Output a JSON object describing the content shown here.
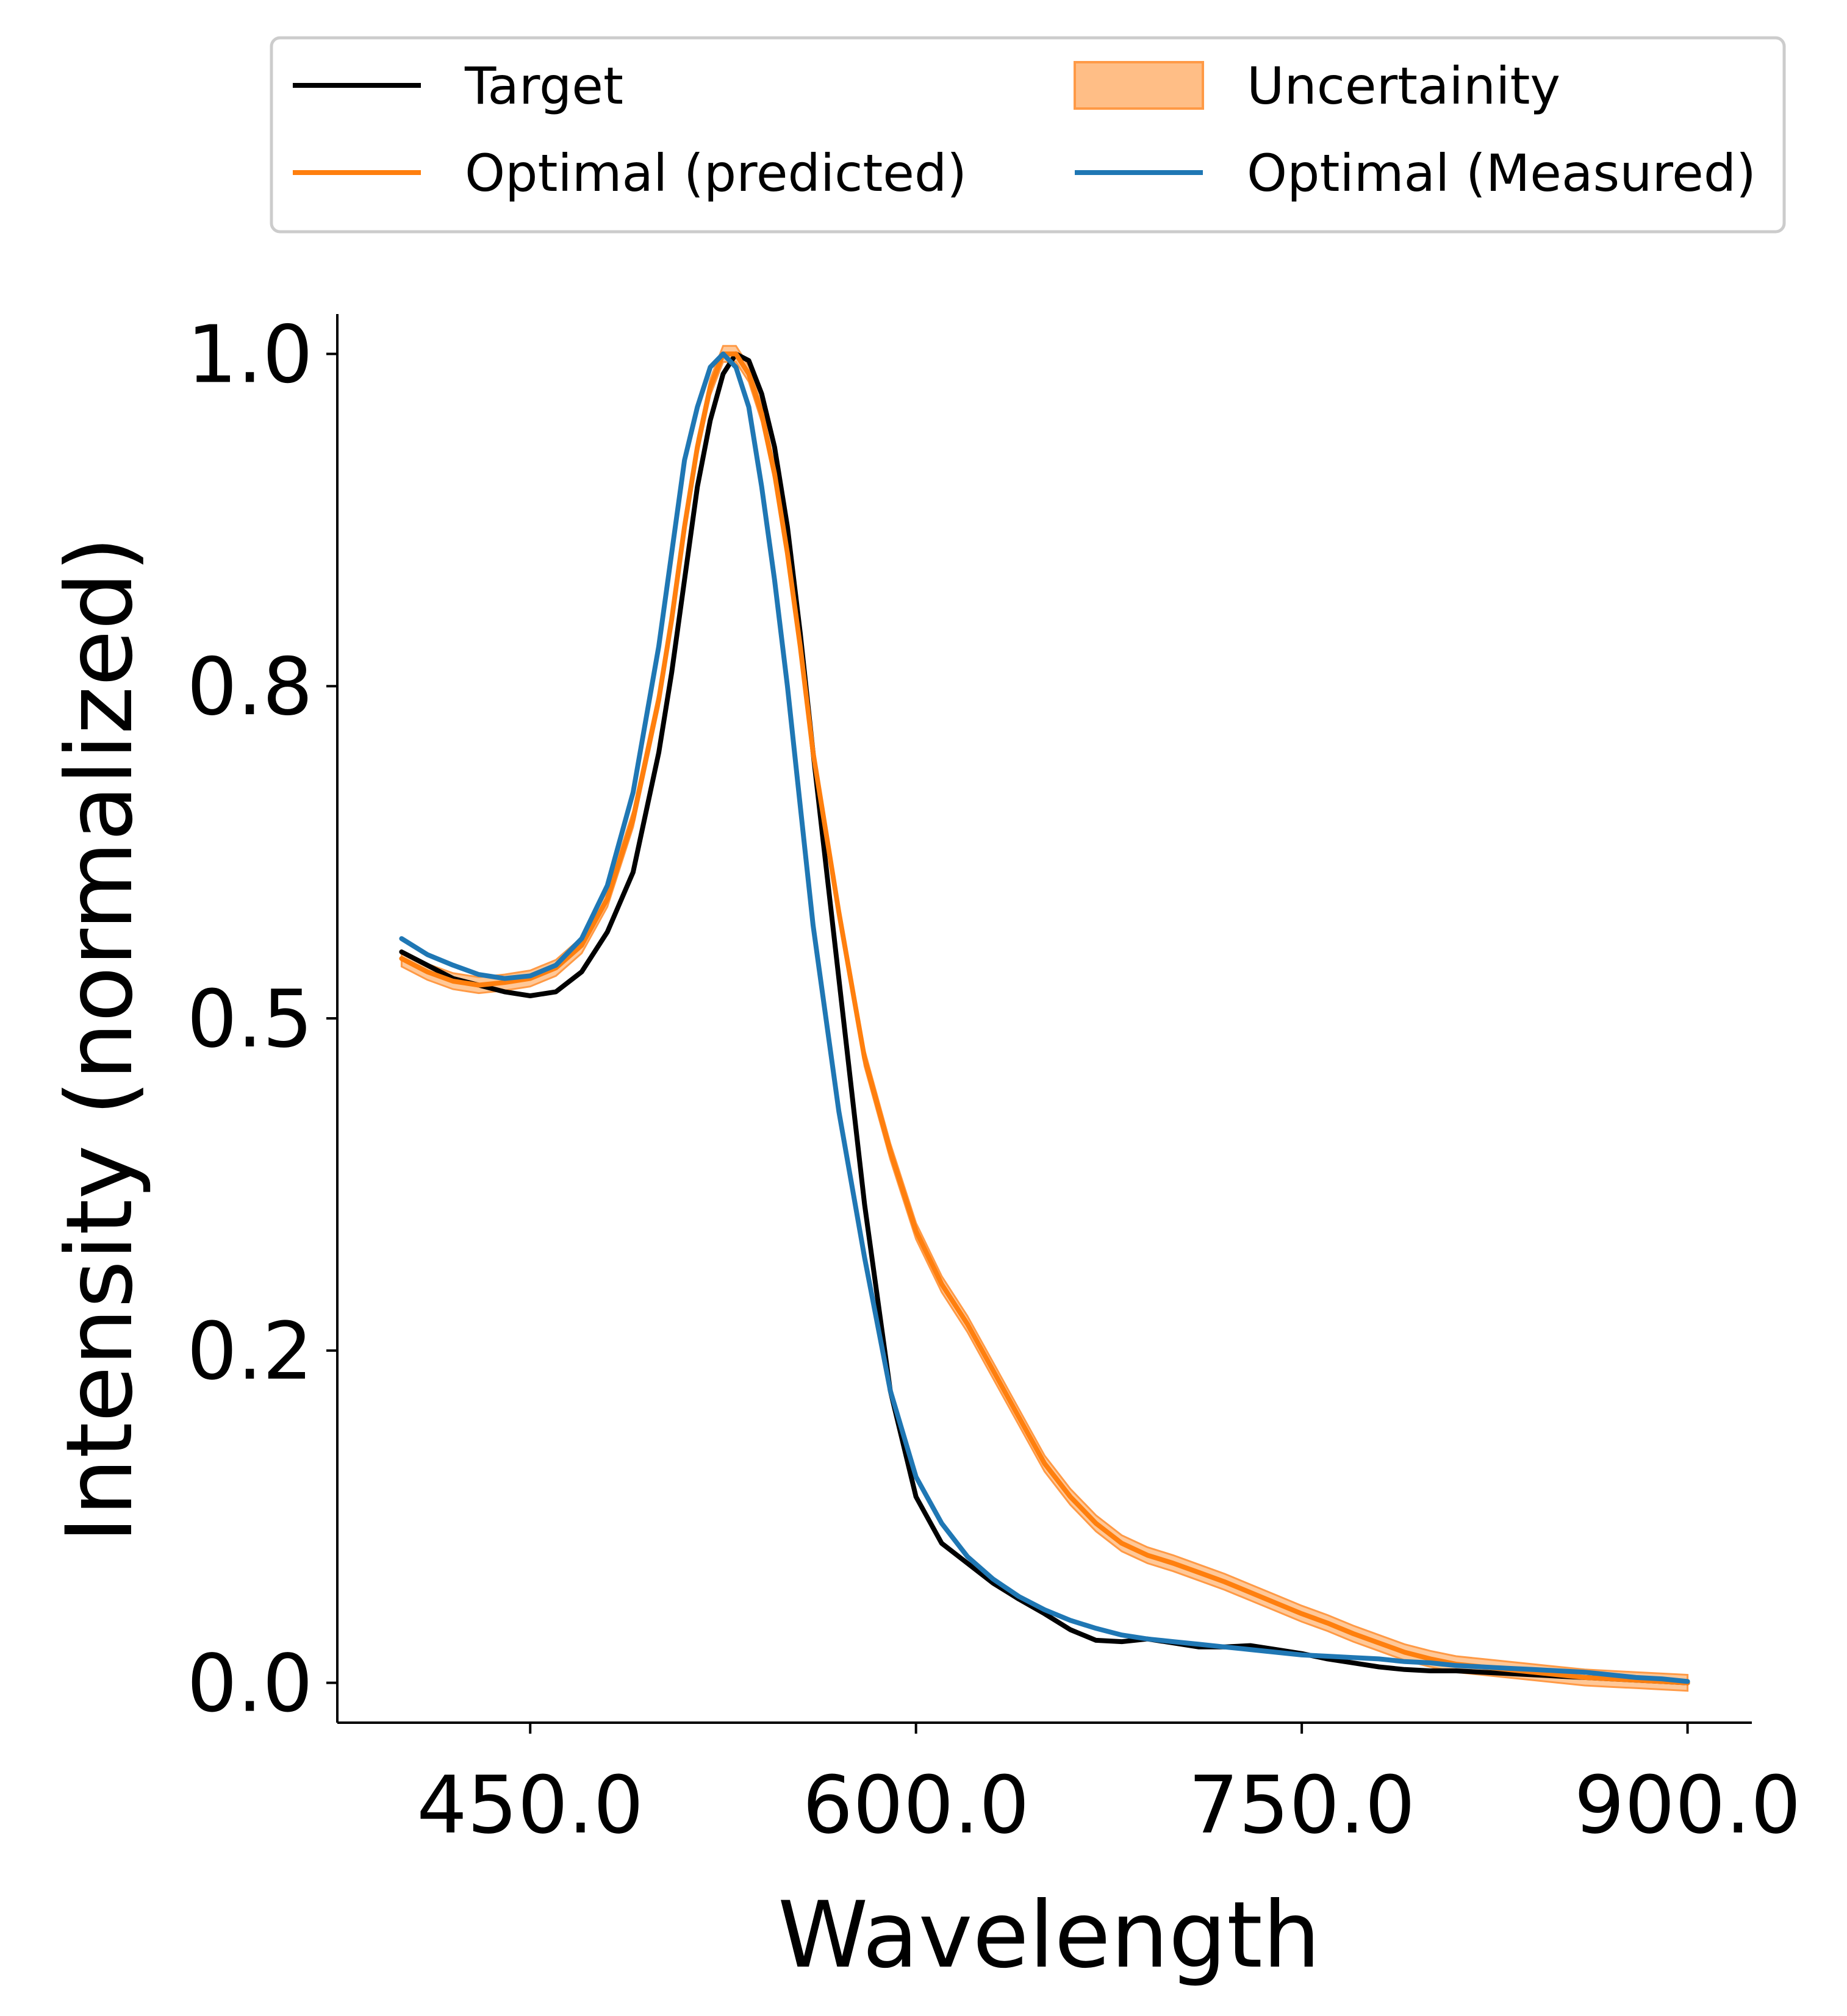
{
  "chart_data": {
    "type": "line",
    "xlabel": "Wavelength",
    "ylabel": "Intensity (normalized)",
    "xlim": [
      375,
      925
    ],
    "ylim": [
      -0.03,
      1.03
    ],
    "x_ticks": [
      450,
      600,
      750,
      900
    ],
    "x_tick_labels": [
      "450.0",
      "600.0",
      "750.0",
      "900.0"
    ],
    "y_ticks": [
      0.0,
      0.25,
      0.5,
      0.75,
      1.0
    ],
    "y_tick_labels": [
      "0.0",
      "0.2",
      "0.5",
      "0.8",
      "1.0"
    ],
    "grid": false,
    "legend_position": "top, above plot, 2 columns",
    "legend": [
      {
        "label": "Target",
        "kind": "line",
        "series": "target"
      },
      {
        "label": "Optimal (predicted)",
        "kind": "line",
        "series": "predicted"
      },
      {
        "label": "Uncertainity",
        "kind": "band",
        "series": "uncertainty"
      },
      {
        "label": "Optimal (Measured)",
        "kind": "line",
        "series": "measured"
      }
    ],
    "colors": {
      "target": "#000000",
      "predicted": "#ff7f0e",
      "uncertainty_fill": "#ffbe86",
      "uncertainty_edge": "#ff9a46",
      "measured": "#1f77b4"
    },
    "series": [
      {
        "name": "Target",
        "key": "target",
        "x": [
          400,
          410,
          420,
          430,
          440,
          450,
          460,
          470,
          480,
          490,
          500,
          505,
          510,
          515,
          520,
          525,
          530,
          535,
          540,
          545,
          550,
          555,
          560,
          570,
          580,
          590,
          600,
          610,
          620,
          630,
          640,
          650,
          660,
          670,
          680,
          690,
          700,
          710,
          720,
          730,
          740,
          750,
          760,
          770,
          780,
          790,
          800,
          810,
          820,
          830,
          840,
          850,
          860,
          870,
          880,
          890,
          900
        ],
        "y": [
          0.55,
          0.54,
          0.53,
          0.525,
          0.52,
          0.517,
          0.52,
          0.535,
          0.565,
          0.61,
          0.7,
          0.76,
          0.83,
          0.9,
          0.95,
          0.985,
          1.0,
          0.995,
          0.97,
          0.93,
          0.87,
          0.79,
          0.7,
          0.53,
          0.36,
          0.22,
          0.14,
          0.105,
          0.09,
          0.075,
          0.063,
          0.052,
          0.04,
          0.032,
          0.031,
          0.033,
          0.03,
          0.027,
          0.027,
          0.028,
          0.025,
          0.022,
          0.018,
          0.015,
          0.012,
          0.01,
          0.009,
          0.009,
          0.008,
          0.007,
          0.006,
          0.005,
          0.004,
          0.003,
          0.002,
          0.001,
          0.0
        ]
      },
      {
        "name": "Optimal (predicted)",
        "key": "predicted",
        "x": [
          400,
          410,
          420,
          430,
          440,
          450,
          460,
          470,
          480,
          490,
          500,
          505,
          510,
          515,
          520,
          525,
          530,
          535,
          540,
          545,
          550,
          555,
          560,
          570,
          580,
          590,
          600,
          610,
          620,
          630,
          640,
          650,
          660,
          670,
          680,
          690,
          700,
          710,
          720,
          730,
          740,
          750,
          760,
          770,
          780,
          790,
          800,
          810,
          820,
          830,
          840,
          850,
          860,
          870,
          880,
          890,
          900
        ],
        "y": [
          0.545,
          0.535,
          0.528,
          0.525,
          0.527,
          0.53,
          0.538,
          0.555,
          0.59,
          0.65,
          0.74,
          0.8,
          0.87,
          0.93,
          0.975,
          1.0,
          1.0,
          0.985,
          0.955,
          0.91,
          0.85,
          0.78,
          0.7,
          0.58,
          0.47,
          0.4,
          0.34,
          0.3,
          0.27,
          0.235,
          0.2,
          0.165,
          0.14,
          0.12,
          0.105,
          0.096,
          0.09,
          0.083,
          0.076,
          0.068,
          0.06,
          0.052,
          0.045,
          0.037,
          0.03,
          0.023,
          0.018,
          0.014,
          0.012,
          0.01,
          0.008,
          0.006,
          0.004,
          0.003,
          0.002,
          0.001,
          0.0
        ]
      },
      {
        "name": "Optimal (Measured)",
        "key": "measured",
        "x": [
          400,
          410,
          420,
          430,
          440,
          450,
          460,
          470,
          480,
          490,
          500,
          505,
          510,
          515,
          520,
          525,
          530,
          535,
          540,
          545,
          550,
          555,
          560,
          570,
          580,
          590,
          600,
          610,
          620,
          630,
          640,
          650,
          660,
          670,
          680,
          690,
          700,
          710,
          720,
          730,
          740,
          750,
          760,
          770,
          780,
          790,
          800,
          810,
          820,
          830,
          840,
          850,
          860,
          870,
          880,
          890,
          900
        ],
        "y": [
          0.56,
          0.548,
          0.54,
          0.533,
          0.53,
          0.532,
          0.54,
          0.56,
          0.6,
          0.67,
          0.78,
          0.85,
          0.92,
          0.96,
          0.99,
          1.0,
          0.99,
          0.96,
          0.9,
          0.83,
          0.75,
          0.66,
          0.57,
          0.43,
          0.32,
          0.22,
          0.155,
          0.12,
          0.095,
          0.078,
          0.065,
          0.055,
          0.047,
          0.041,
          0.036,
          0.033,
          0.031,
          0.029,
          0.027,
          0.025,
          0.023,
          0.021,
          0.02,
          0.019,
          0.018,
          0.016,
          0.015,
          0.013,
          0.012,
          0.011,
          0.01,
          0.009,
          0.008,
          0.006,
          0.004,
          0.003,
          0.001
        ]
      }
    ],
    "uncertainty": {
      "name": "Uncertainity",
      "around": "predicted",
      "half_width": 0.006
    }
  }
}
